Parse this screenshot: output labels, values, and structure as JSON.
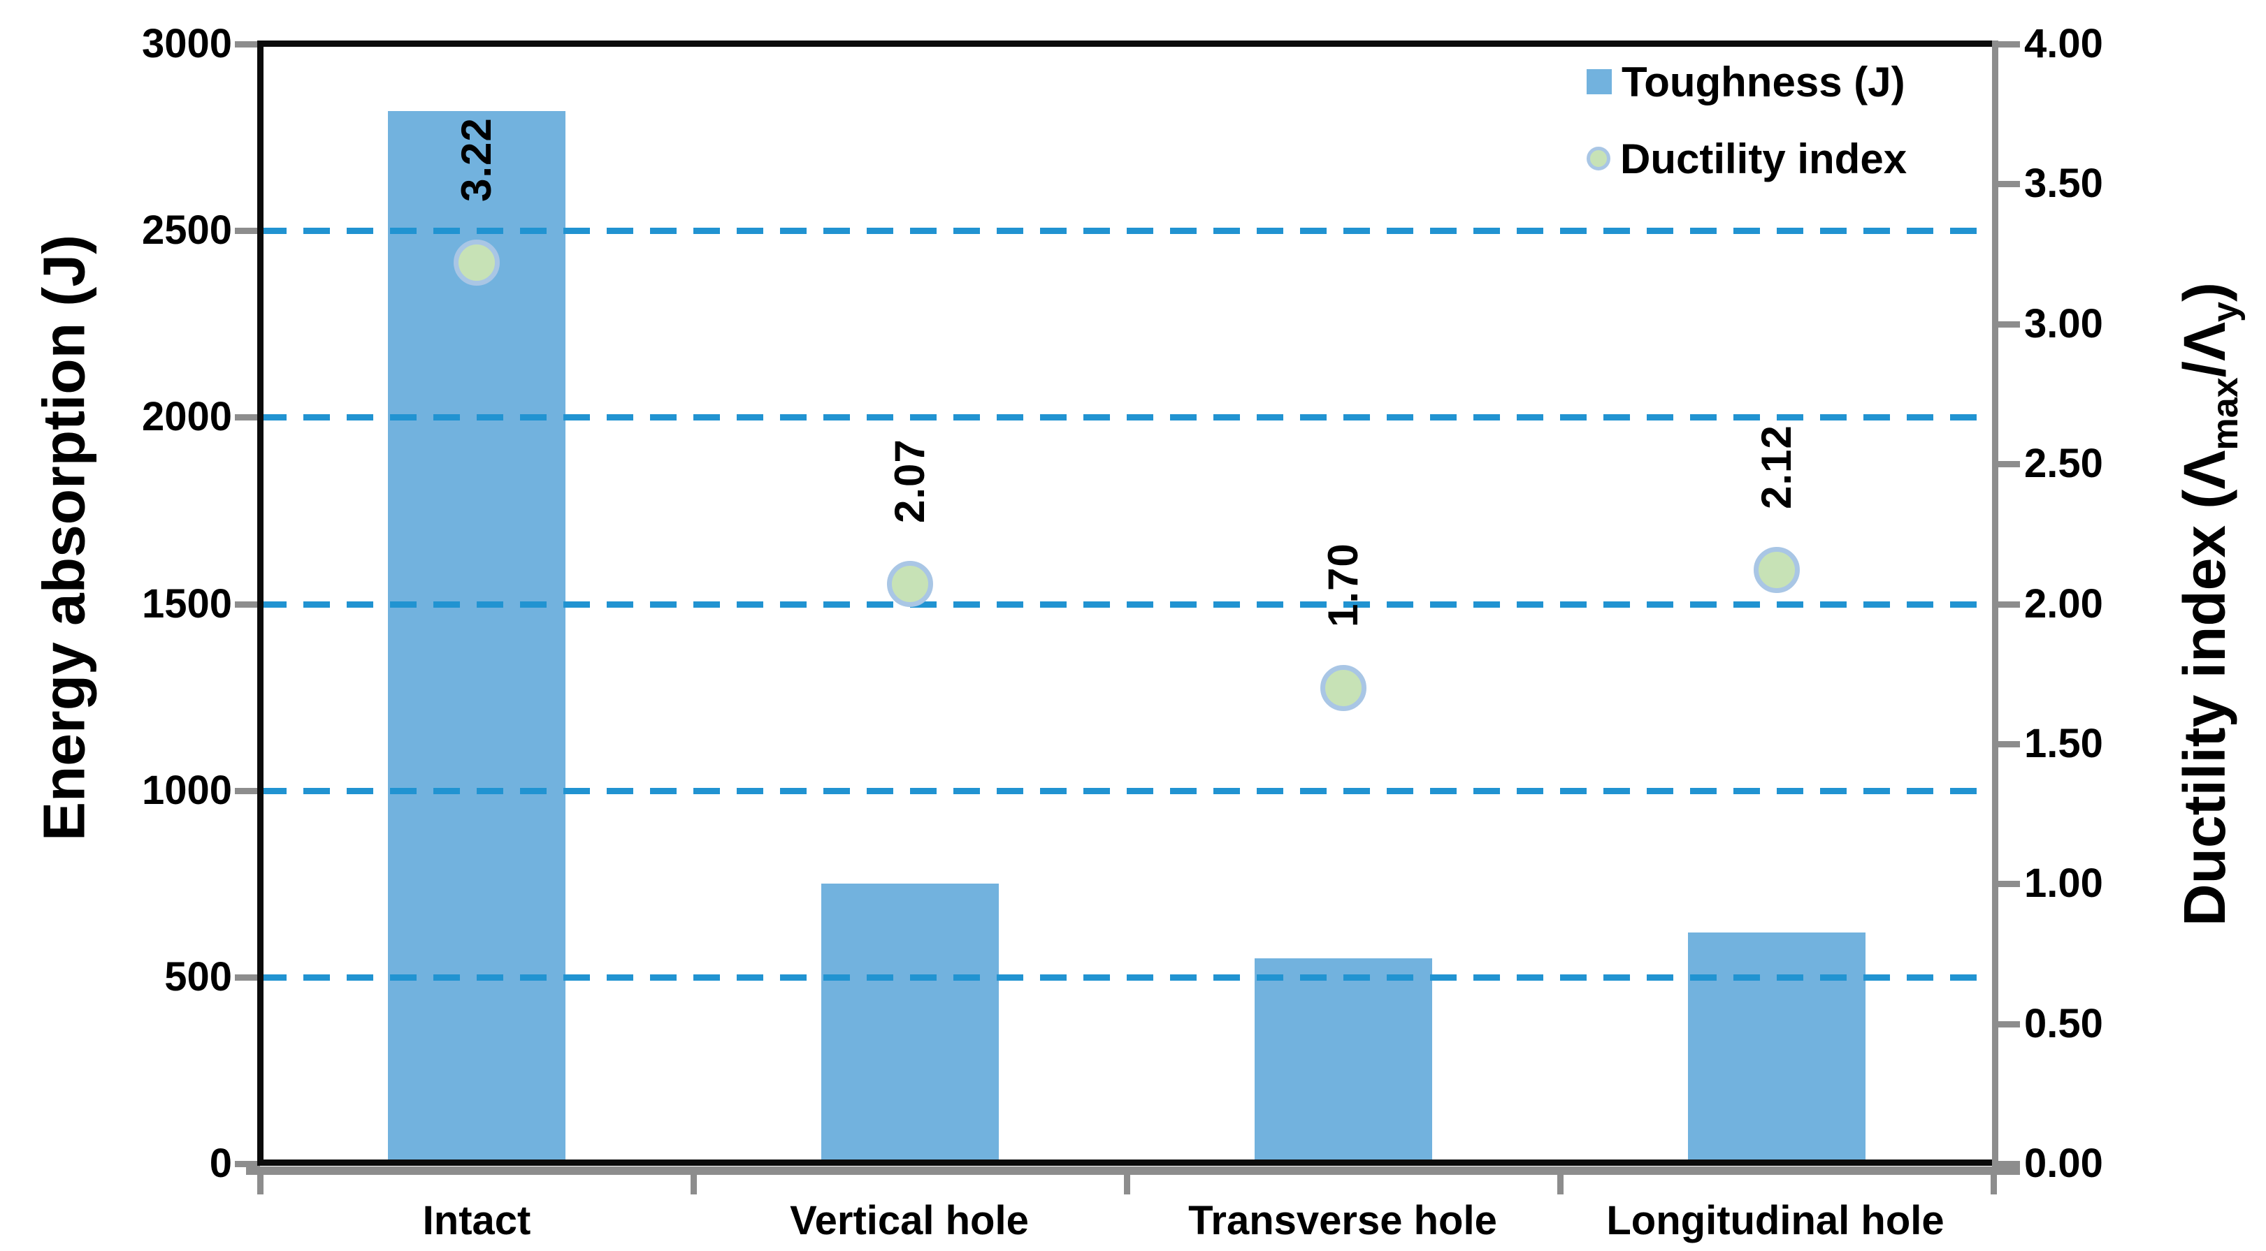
{
  "chart_data": {
    "type": "bar",
    "subtype": "combo-bar-scatter",
    "categories": [
      "Intact",
      "Vertical hole",
      "Transverse hole",
      "Longitudinal hole"
    ],
    "series": [
      {
        "name": "Toughness (J)",
        "type": "bar",
        "axis": "left",
        "values": [
          2820,
          750,
          550,
          620
        ],
        "color": "#72b2de"
      },
      {
        "name": "Ductility index",
        "type": "scatter",
        "axis": "right",
        "values": [
          3.22,
          2.07,
          1.7,
          2.12
        ],
        "point_labels": [
          "3.22",
          "2.07",
          "1.70",
          "2.12"
        ],
        "marker_fill": "#c7e2b6",
        "marker_border": "#a9c6e5"
      }
    ],
    "left_axis": {
      "title": "Energy absorption (J)",
      "min": 0,
      "max": 3000,
      "step": 500,
      "tick_labels": [
        "3000",
        "2500",
        "2000",
        "1500",
        "1000",
        "500",
        "0"
      ]
    },
    "right_axis": {
      "title_prefix": "Ductility index (Λ",
      "title_sub1": "max",
      "title_mid": "/Λ",
      "title_sub2": "y",
      "title_suffix": ")",
      "min": 0,
      "max": 4,
      "step": 0.5,
      "tick_labels": [
        "4.00",
        "3.50",
        "3.00",
        "2.50",
        "2.00",
        "1.50",
        "1.00",
        "0.50",
        "0.00"
      ]
    },
    "legend": [
      {
        "label": "Toughness (J)",
        "swatch": "square"
      },
      {
        "label": "Ductility index",
        "swatch": "circle"
      }
    ],
    "gridlines": {
      "left_axis_values": [
        500,
        1000,
        1500,
        2000,
        2500
      ],
      "style": "dashed",
      "color": "#2193d1"
    },
    "colors": {
      "bar": "#72b2de",
      "gridline": "#2193d1",
      "marker_fill": "#c7e2b6",
      "marker_border": "#a9c6e5",
      "axis_primary": "#0b0b0b",
      "axis_secondary": "#8d8d8d",
      "text": "#000000"
    },
    "legend_position": "top-right-inside",
    "grid": "horizontal-dashed"
  }
}
